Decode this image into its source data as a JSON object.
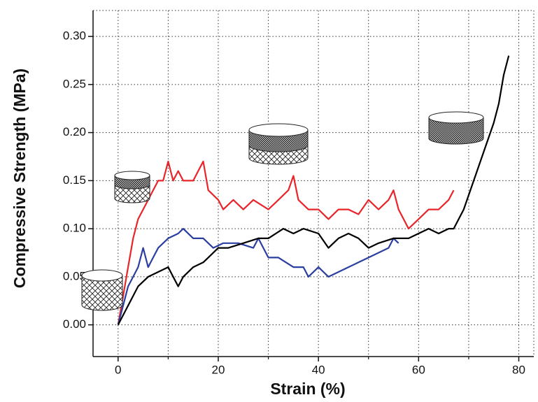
{
  "chart_data": {
    "type": "line",
    "x_label": "Strain (%)",
    "y_label": "Compressive Strength (MPa)",
    "xlim": [
      -5,
      83
    ],
    "ylim": [
      -0.033,
      0.327
    ],
    "xticks": [
      0,
      20,
      40,
      60,
      80
    ],
    "xminorticks": [
      10,
      30,
      50,
      70
    ],
    "yticks": [
      {
        "value": 0,
        "label": "0.00"
      },
      {
        "value": 0.05,
        "label": "0.05"
      },
      {
        "value": 0.1,
        "label": "0.10"
      },
      {
        "value": 0.15,
        "label": "0.15"
      },
      {
        "value": 0.2,
        "label": "0.20"
      },
      {
        "value": 0.25,
        "label": "0.25"
      },
      {
        "value": 0.3,
        "label": "0.30"
      }
    ],
    "grid": true,
    "series": [
      {
        "color": "#e8252a",
        "x": [
          0,
          1,
          2,
          3,
          4,
          5,
          6,
          7,
          8,
          9,
          10,
          11,
          12,
          13,
          15,
          16,
          17,
          18,
          20,
          21,
          23,
          25,
          27,
          30,
          32,
          34,
          35,
          36,
          38,
          40,
          42,
          44,
          46,
          48,
          50,
          52,
          54,
          55,
          56,
          57,
          58,
          60,
          62,
          64,
          66,
          67
        ],
        "values": [
          0,
          0.03,
          0.06,
          0.09,
          0.11,
          0.12,
          0.13,
          0.14,
          0.15,
          0.15,
          0.17,
          0.15,
          0.16,
          0.15,
          0.15,
          0.16,
          0.17,
          0.14,
          0.13,
          0.12,
          0.13,
          0.12,
          0.13,
          0.12,
          0.13,
          0.14,
          0.155,
          0.13,
          0.12,
          0.12,
          0.11,
          0.12,
          0.12,
          0.115,
          0.13,
          0.12,
          0.13,
          0.14,
          0.12,
          0.11,
          0.1,
          0.11,
          0.12,
          0.12,
          0.13,
          0.14
        ]
      },
      {
        "color": "#2b3fa0",
        "x": [
          0,
          1,
          2,
          3,
          4,
          5,
          6,
          7,
          8,
          10,
          12,
          13,
          15,
          17,
          19,
          21,
          24,
          27,
          28,
          29,
          30,
          32,
          35,
          37,
          38,
          40,
          42,
          44,
          46,
          48,
          50,
          52,
          54,
          55,
          56
        ],
        "values": [
          0,
          0.02,
          0.04,
          0.05,
          0.06,
          0.08,
          0.06,
          0.07,
          0.08,
          0.09,
          0.095,
          0.1,
          0.09,
          0.09,
          0.08,
          0.085,
          0.085,
          0.08,
          0.09,
          0.08,
          0.07,
          0.07,
          0.06,
          0.06,
          0.05,
          0.06,
          0.05,
          0.055,
          0.06,
          0.065,
          0.07,
          0.075,
          0.08,
          0.09,
          0.085
        ]
      },
      {
        "color": "#000000",
        "x": [
          0,
          2,
          4,
          6,
          8,
          10,
          11,
          12,
          13,
          15,
          17,
          18,
          20,
          22,
          25,
          28,
          30,
          33,
          35,
          37,
          40,
          42,
          44,
          46,
          48,
          50,
          52,
          55,
          58,
          60,
          62,
          64,
          66,
          67,
          69,
          71,
          73,
          75,
          76,
          77,
          78
        ],
        "values": [
          0,
          0.02,
          0.04,
          0.05,
          0.055,
          0.06,
          0.05,
          0.04,
          0.05,
          0.06,
          0.065,
          0.07,
          0.08,
          0.08,
          0.085,
          0.09,
          0.09,
          0.1,
          0.095,
          0.1,
          0.095,
          0.08,
          0.09,
          0.095,
          0.09,
          0.08,
          0.085,
          0.09,
          0.09,
          0.095,
          0.1,
          0.095,
          0.1,
          0.1,
          0.12,
          0.15,
          0.18,
          0.21,
          0.23,
          0.26,
          0.28
        ]
      }
    ]
  }
}
